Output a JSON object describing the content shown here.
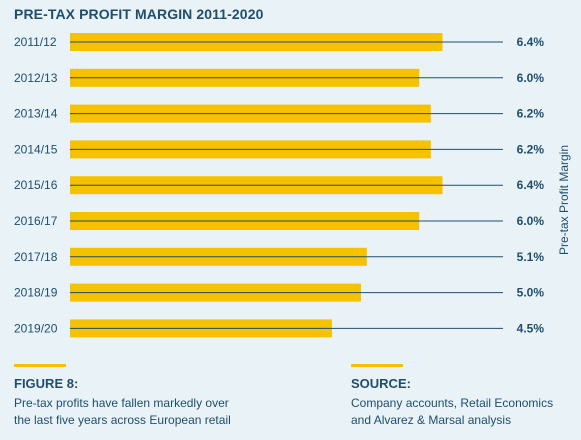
{
  "chart_data": {
    "type": "bar",
    "orientation": "horizontal",
    "title": "PRE-TAX PROFIT MARGIN 2011-2020",
    "ylabel": "Pre-tax Profit Margin",
    "categories": [
      "2011/12",
      "2012/13",
      "2013/14",
      "2014/15",
      "2015/16",
      "2016/17",
      "2017/18",
      "2018/19",
      "2019/20"
    ],
    "values": [
      6.4,
      6.0,
      6.2,
      6.2,
      6.4,
      6.0,
      5.1,
      5.0,
      4.5
    ],
    "value_labels": [
      "6.4%",
      "6.0%",
      "6.2%",
      "6.2%",
      "6.4%",
      "6.0%",
      "5.1%",
      "5.0%",
      "4.5%"
    ],
    "bar_color": "#f5c200",
    "line_color": "#1f4e6c"
  },
  "figure": {
    "label": "FIGURE 8:",
    "line1": "Pre-tax profits have fallen markedly over",
    "line2": "the last five years across European retail"
  },
  "source": {
    "label": "SOURCE:",
    "line1": "Company accounts, Retail Economics",
    "line2": "and Alvarez & Marsal analysis"
  },
  "colors": {
    "background": "#e8f2f7",
    "text": "#1f4e6c",
    "accent": "#f5c200"
  }
}
